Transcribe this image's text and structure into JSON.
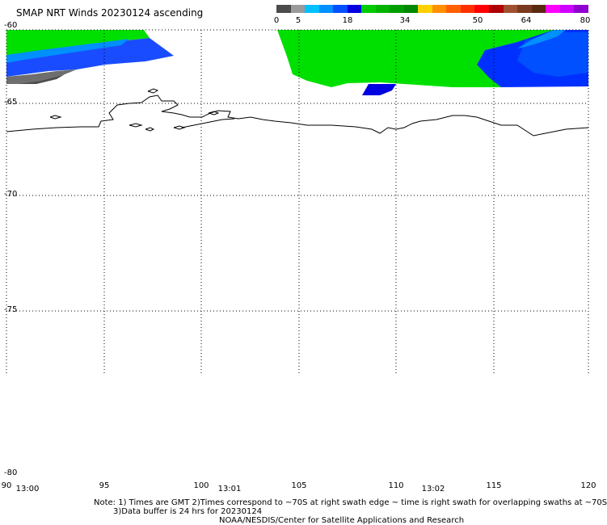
{
  "title": "SMAP NRT Winds 20230124 ascending",
  "colorbar": {
    "segments": [
      "#4b4b4b",
      "#9a9a9a",
      "#00c0ff",
      "#0090ff",
      "#0050ff",
      "#0000e0",
      "#00cc00",
      "#00b400",
      "#009c00",
      "#008800",
      "#ffd000",
      "#ff9000",
      "#ff6000",
      "#ff3000",
      "#ff0000",
      "#b00000",
      "#a05030",
      "#7a3a20",
      "#5a2a10",
      "#ff00ff",
      "#d000ff",
      "#9000d0"
    ],
    "ticks": [
      "0",
      "5",
      "18",
      "34",
      "50",
      "64",
      "80"
    ]
  },
  "map": {
    "lat_labels": [
      "-60",
      "-65",
      "-70",
      "-75",
      "-80"
    ],
    "lon_labels": [
      "90",
      "95",
      "100",
      "105",
      "110",
      "115",
      "120"
    ],
    "time_labels": [
      "13:00",
      "13:01",
      "13:02"
    ],
    "swath_colors": {
      "green": "#00e000",
      "blue": "#0030ff",
      "light_blue": "#0090ff",
      "dark_blue": "#0000e0",
      "gray": "#707070"
    }
  },
  "notes": {
    "line1": "Note: 1) Times are GMT 2)Times correspond to ~70S at right swath edge ~ time is right swath for overlapping swaths at ~70S",
    "line2": "3)Data buffer is 24 hrs for 20230124",
    "line3": "NOAA/NESDIS/Center for Satellite Applications and Research"
  }
}
